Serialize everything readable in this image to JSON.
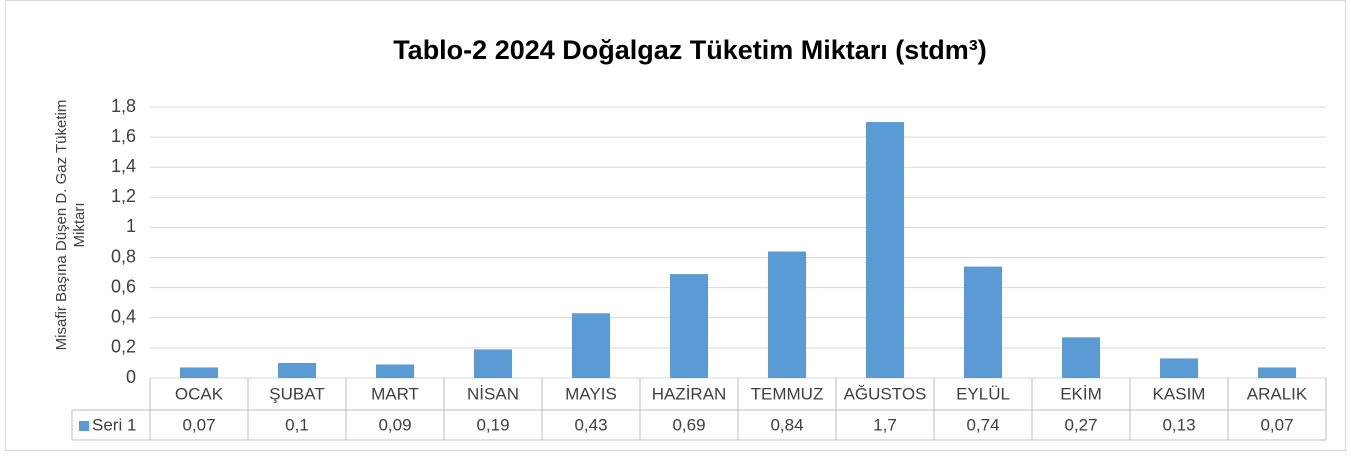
{
  "chart_data": {
    "type": "bar",
    "title": "Tablo-2 2024 Doğalgaz Tüketim Miktarı (stdm³)",
    "ylabel": [
      "Misafir Başına Düşen D. Gaz Tüketim",
      "Miktarı"
    ],
    "categories": [
      "OCAK",
      "ŞUBAT",
      "MART",
      "NİSAN",
      "MAYIS",
      "HAZİRAN",
      "TEMMUZ",
      "AĞUSTOS",
      "EYLÜL",
      "EKİM",
      "KASIM",
      "ARALIK"
    ],
    "series": [
      {
        "name": "Seri 1",
        "color": "#5b9bd5",
        "values": [
          0.07,
          0.1,
          0.09,
          0.19,
          0.43,
          0.69,
          0.84,
          1.7,
          0.74,
          0.27,
          0.13,
          0.07
        ],
        "value_labels": [
          "0,07",
          "0,1",
          "0,09",
          "0,19",
          "0,43",
          "0,69",
          "0,84",
          "1,7",
          "0,74",
          "0,27",
          "0,13",
          "0,07"
        ]
      }
    ],
    "ylim": [
      0,
      1.8
    ],
    "yticks": [
      0,
      {
        "value": 0.2,
        "label": "0,2"
      },
      {
        "value": 0.4,
        "label": "0,4"
      },
      {
        "value": 0.6,
        "label": "0,6"
      },
      {
        "value": 0.8,
        "label": "0,8"
      },
      1,
      {
        "value": 1.2,
        "label": "1,2"
      },
      {
        "value": 1.4,
        "label": "1,4"
      },
      {
        "value": 1.6,
        "label": "1,6"
      },
      {
        "value": 1.8,
        "label": "1,8"
      }
    ],
    "grid": true
  }
}
